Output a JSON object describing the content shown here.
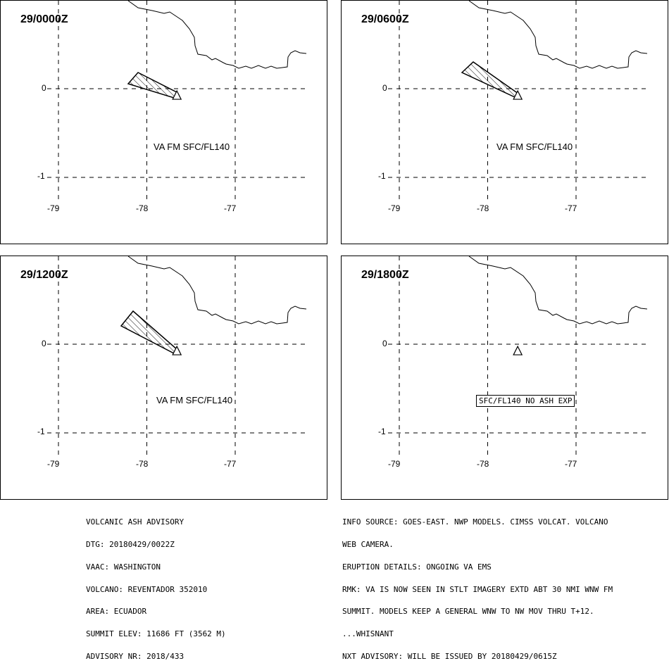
{
  "panels": [
    {
      "time": "29/0000Z",
      "label": "VA FM SFC/FL140",
      "label_type": "text"
    },
    {
      "time": "29/0600Z",
      "label": "VA FM SFC/FL140",
      "label_type": "text"
    },
    {
      "time": "29/1200Z",
      "label": "VA FM SFC/FL140",
      "label_type": "text"
    },
    {
      "time": "29/1800Z",
      "label": "SFC/FL140 NO ASH EXP",
      "label_type": "box"
    }
  ],
  "axis": {
    "x_ticks": [
      "-79",
      "-78",
      "-77"
    ],
    "y_ticks": [
      "0",
      "-1"
    ]
  },
  "volcano": {
    "lon": -77.66,
    "lat": -0.08
  },
  "advisory_left": [
    "VOLCANIC ASH ADVISORY",
    "DTG: 20180429/0022Z",
    "VAAC: WASHINGTON",
    "VOLCANO: REVENTADOR 352010",
    "AREA: ECUADOR",
    "SUMMIT ELEV: 11686 FT (3562 M)",
    "ADVISORY NR: 2018/433"
  ],
  "advisory_right": [
    "INFO SOURCE: GOES-EAST. NWP MODELS. CIMSS VOLCAT. VOLCANO",
    "WEB CAMERA.",
    "ERUPTION DETAILS: ONGOING VA EMS",
    "RMK: VA IS NOW SEEN IN STLT IMAGERY EXTD ABT 30 NMI WNW FM",
    "SUMMIT. MODELS KEEP A GENERAL WNW TO NW MOV THRU T+12.",
    "...WHISNANT",
    "NXT ADVISORY: WILL BE ISSUED BY 20180429/0615Z"
  ]
}
